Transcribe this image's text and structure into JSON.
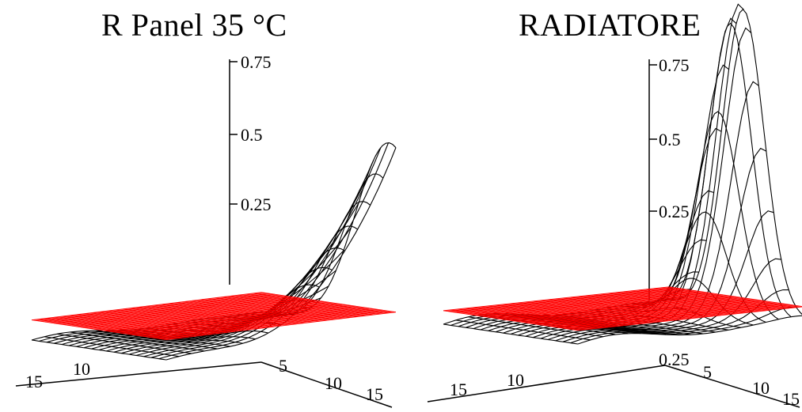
{
  "chart_data": [
    {
      "type": "surface3d",
      "title": "R Panel 35 °C",
      "z_ticks": [
        "0.75",
        "0.5",
        "0.25"
      ],
      "axis_tick_labels": [
        "15",
        "10",
        "5",
        "10",
        "15"
      ],
      "zlim": [
        0,
        0.75
      ],
      "peak_z": 0.47,
      "reference_plane_color": "#ff0000",
      "mesh_color": "#000000"
    },
    {
      "type": "surface3d",
      "title": "RADIATORE",
      "z_ticks": [
        "0.75",
        "0.5",
        "0.25"
      ],
      "axis_tick_labels": [
        "15",
        "10",
        "0.25",
        "5",
        "10",
        "15"
      ],
      "zlim": [
        0,
        0.75
      ],
      "peak_z": 0.68,
      "reference_plane_color": "#ff0000",
      "mesh_color": "#000000"
    }
  ]
}
